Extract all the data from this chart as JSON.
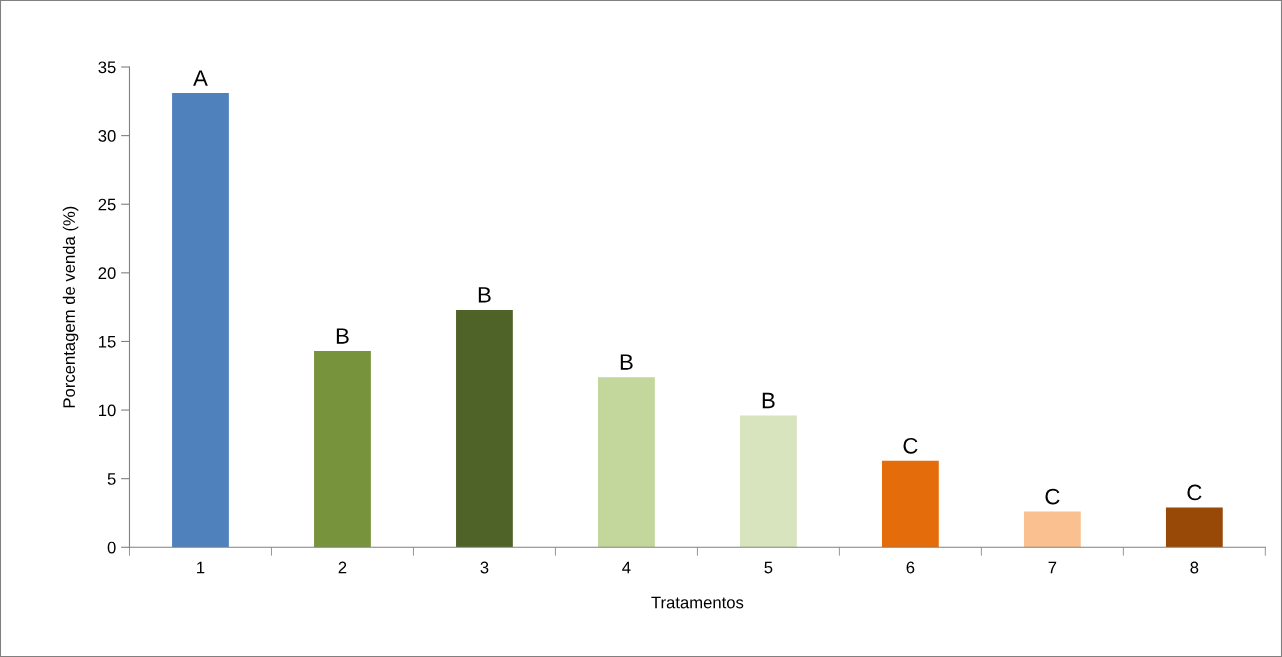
{
  "chart_data": {
    "type": "bar",
    "xlabel": "Tratamentos",
    "ylabel": "Porcentagem de venda (%)",
    "categories": [
      "1",
      "2",
      "3",
      "4",
      "5",
      "6",
      "7",
      "8"
    ],
    "values": [
      33.1,
      14.3,
      17.3,
      12.4,
      9.6,
      6.3,
      2.6,
      2.9
    ],
    "colors": [
      "#4f81bd",
      "#77933c",
      "#4f6228",
      "#c3d69b",
      "#d7e4bd",
      "#e46c0a",
      "#fac090",
      "#984807"
    ],
    "value_labels": [
      "A",
      "B",
      "B",
      "B",
      "B",
      "C",
      "C",
      "C"
    ],
    "ylim": [
      0,
      35
    ],
    "yticks": [
      0,
      5,
      10,
      15,
      20,
      25,
      30,
      35
    ],
    "grid": false
  }
}
